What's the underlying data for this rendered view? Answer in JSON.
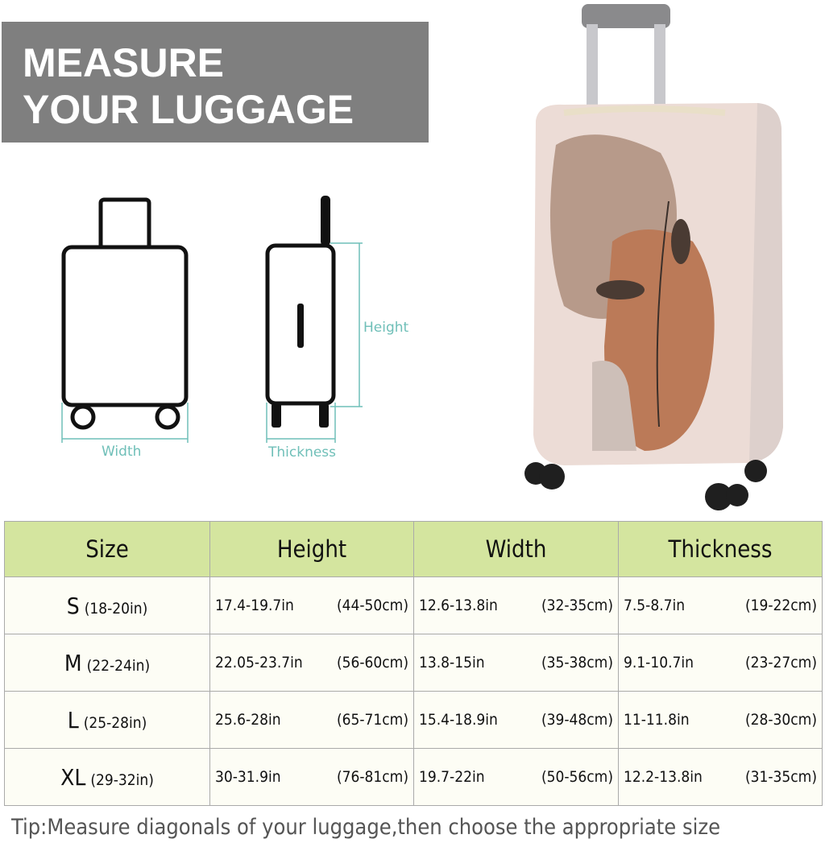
{
  "banner": {
    "line1": "MEASURE",
    "line2": "YOUR LUGGAGE"
  },
  "diagram": {
    "width_label": "Width",
    "thickness_label": "Thickness",
    "height_label": "Height",
    "accent": "#6fbfb8"
  },
  "table": {
    "headers": [
      "Size",
      "Height",
      "Width",
      "Thickness"
    ],
    "rows": [
      {
        "size": "S",
        "size_range": "(18-20in)",
        "height_in": "17.4-19.7in",
        "height_cm": "(44-50cm)",
        "width_in": "12.6-13.8in",
        "width_cm": "(32-35cm)",
        "thick_in": "7.5-8.7in",
        "thick_cm": "(19-22cm)"
      },
      {
        "size": "M",
        "size_range": "(22-24in)",
        "height_in": "22.05-23.7in",
        "height_cm": "(56-60cm)",
        "width_in": "13.8-15in",
        "width_cm": "(35-38cm)",
        "thick_in": "9.1-10.7in",
        "thick_cm": "(23-27cm)"
      },
      {
        "size": "L",
        "size_range": "(25-28in)",
        "height_in": "25.6-28in",
        "height_cm": "(65-71cm)",
        "width_in": "15.4-18.9in",
        "width_cm": "(39-48cm)",
        "thick_in": "11-11.8in",
        "thick_cm": "(28-30cm)"
      },
      {
        "size": "XL",
        "size_range": "(29-32in)",
        "height_in": "30-31.9in",
        "height_cm": "(76-81cm)",
        "width_in": "19.7-22in",
        "width_cm": "(50-56cm)",
        "thick_in": "12.2-13.8in",
        "thick_cm": "(31-35cm)"
      }
    ],
    "header_color": "#d4e59f"
  },
  "tip": "Tip:Measure diagonals of your luggage,then choose the appropriate size"
}
